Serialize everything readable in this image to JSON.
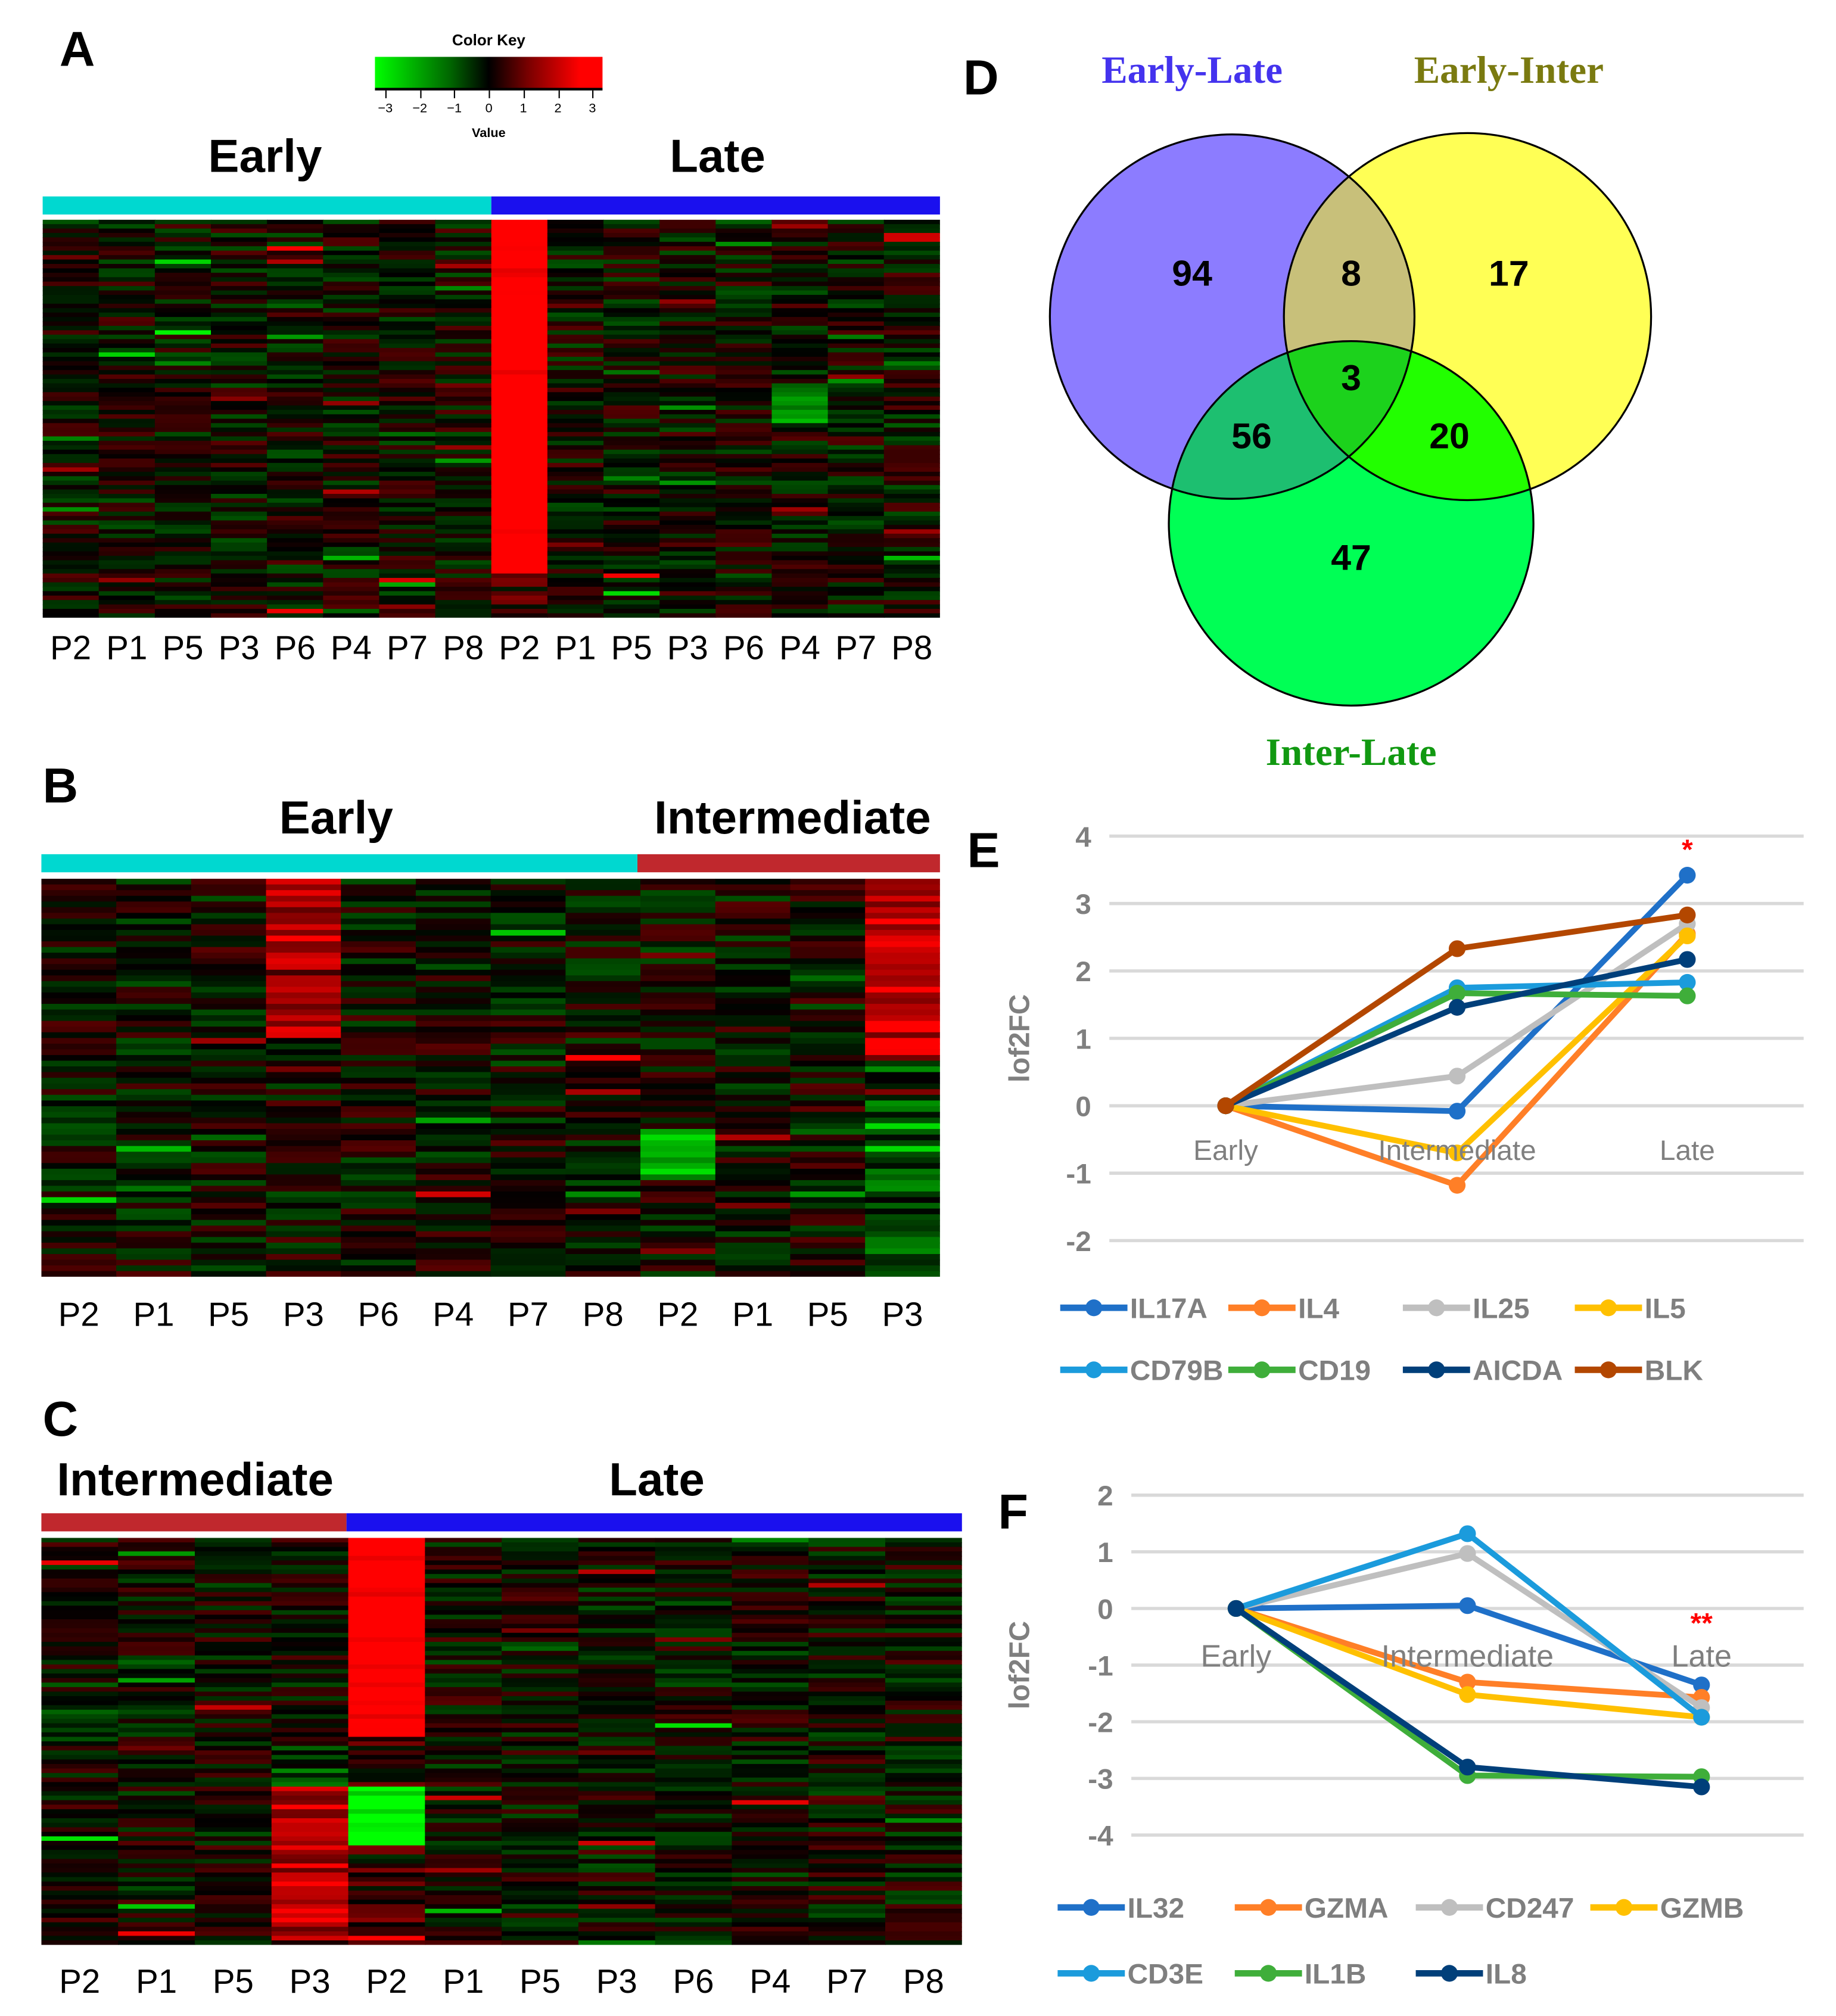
{
  "panels": {
    "A": "A",
    "B": "B",
    "C": "C",
    "D": "D",
    "E": "E",
    "F": "F"
  },
  "color_key": {
    "title": "Color Key",
    "ticks": [
      "−3",
      "−2",
      "−1",
      "0",
      "1",
      "2",
      "3"
    ],
    "xlabel": "Value",
    "low": "#00ff00",
    "mid": "#000000",
    "high": "#ff0000"
  },
  "heatmap_a": {
    "groups": [
      {
        "label": "Early",
        "color": "#00d8d0"
      },
      {
        "label": "Late",
        "color": "#1a10ee"
      }
    ],
    "columns": [
      "P2",
      "P1",
      "P5",
      "P3",
      "P6",
      "P4",
      "P7",
      "P8",
      "P2",
      "P1",
      "P5",
      "P3",
      "P6",
      "P4",
      "P7",
      "P8"
    ]
  },
  "heatmap_b": {
    "groups": [
      {
        "label": "Early",
        "color": "#00d8d0"
      },
      {
        "label": "Intermediate",
        "color": "#c0282d"
      }
    ],
    "columns": [
      "P2",
      "P1",
      "P5",
      "P3",
      "P6",
      "P4",
      "P7",
      "P8",
      "P2",
      "P1",
      "P5",
      "P3"
    ]
  },
  "heatmap_c": {
    "groups": [
      {
        "label": "Intermediate",
        "color": "#c0282d"
      },
      {
        "label": "Late",
        "color": "#1a10ee"
      }
    ],
    "columns": [
      "P2",
      "P1",
      "P5",
      "P3",
      "P2",
      "P1",
      "P5",
      "P3",
      "P6",
      "P4",
      "P7",
      "P8"
    ]
  },
  "venn": {
    "sets": [
      {
        "label": "Early-Late",
        "color": "#4433ee",
        "fill": "#8c7cff"
      },
      {
        "label": "Early-Inter",
        "color": "#7a7a10",
        "fill": "#ffff55"
      },
      {
        "label": "Inter-Late",
        "color": "#119911",
        "fill": "#00ff55"
      }
    ],
    "counts": {
      "early_late_only": "94",
      "early_inter_only": "17",
      "inter_late_only": "47",
      "el_ei": "8",
      "el_il": "56",
      "ei_il": "20",
      "all": "3"
    }
  },
  "chart_data": [
    {
      "type": "line",
      "panel": "E",
      "ylabel": "lof2FC",
      "categories": [
        "Early",
        "Intermediate",
        "Late"
      ],
      "ylim": [
        -2,
        4
      ],
      "yticks": [
        "4",
        "3",
        "2",
        "1",
        "0",
        "-1",
        "-2"
      ],
      "grid": true,
      "legend": "bottom",
      "annotation": {
        "text": "*",
        "category": "Late",
        "y": 3.85,
        "color": "#ff0000"
      },
      "series": [
        {
          "name": "IL17A",
          "color": "#1f70c8",
          "values": [
            0,
            -0.08,
            3.42
          ]
        },
        {
          "name": "IL4",
          "color": "#ff7f27",
          "values": [
            0,
            -1.18,
            2.55
          ]
        },
        {
          "name": "IL25",
          "color": "#bfbfbf",
          "values": [
            0,
            0.44,
            2.7
          ]
        },
        {
          "name": "IL5",
          "color": "#ffc000",
          "values": [
            0,
            -0.7,
            2.52
          ]
        },
        {
          "name": "CD79B",
          "color": "#1b9bdc",
          "values": [
            0,
            1.75,
            1.83
          ]
        },
        {
          "name": "CD19",
          "color": "#3fae3a",
          "values": [
            0,
            1.67,
            1.63
          ]
        },
        {
          "name": "AICDA",
          "color": "#003f7a",
          "values": [
            0,
            1.46,
            2.17
          ]
        },
        {
          "name": "BLK",
          "color": "#b34700",
          "values": [
            0,
            2.33,
            2.83
          ]
        }
      ]
    },
    {
      "type": "line",
      "panel": "F",
      "ylabel": "lof2FC",
      "categories": [
        "Early",
        "Intermediate",
        "Late"
      ],
      "ylim": [
        -4,
        2
      ],
      "yticks": [
        "2",
        "1",
        "0",
        "-1",
        "-2",
        "-3",
        "-4"
      ],
      "grid": true,
      "legend": "bottom",
      "annotation": {
        "text": "**",
        "category": "Late",
        "y": -0.2,
        "color": "#ff0000"
      },
      "series": [
        {
          "name": "IL32",
          "color": "#1f70c8",
          "values": [
            0,
            0.05,
            -1.35
          ]
        },
        {
          "name": "GZMA",
          "color": "#ff7f27",
          "values": [
            0,
            -1.3,
            -1.57
          ]
        },
        {
          "name": "CD247",
          "color": "#bfbfbf",
          "values": [
            0,
            0.97,
            -1.75
          ]
        },
        {
          "name": "GZMB",
          "color": "#ffc000",
          "values": [
            0,
            -1.52,
            -1.92
          ]
        },
        {
          "name": "CD3E",
          "color": "#1b9bdc",
          "values": [
            0,
            1.32,
            -1.92
          ]
        },
        {
          "name": "IL1B",
          "color": "#3fae3a",
          "values": [
            0,
            -2.95,
            -2.97
          ]
        },
        {
          "name": "IL8",
          "color": "#003f7a",
          "values": [
            0,
            -2.8,
            -3.15
          ]
        }
      ]
    }
  ]
}
